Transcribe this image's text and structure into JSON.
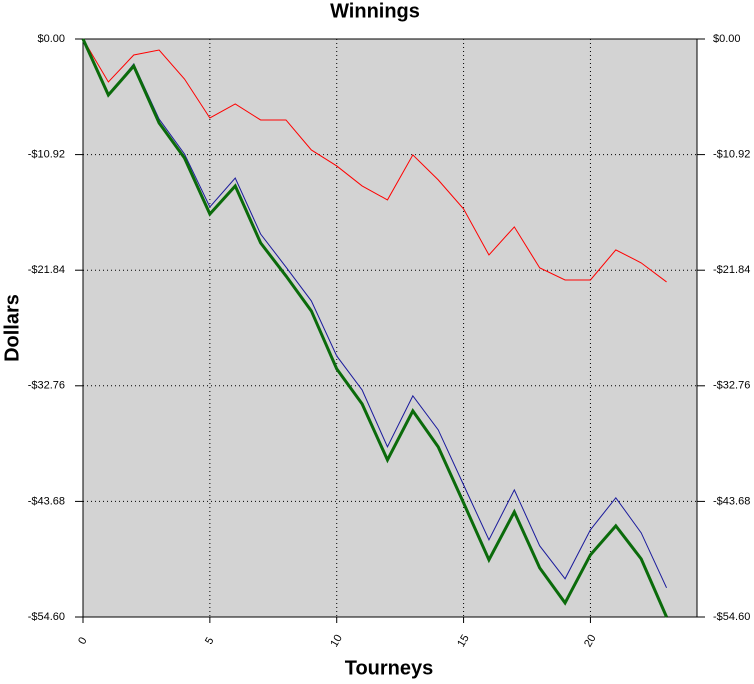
{
  "chart_data": {
    "type": "line",
    "title": "Winnings",
    "xlabel": "Tourneys",
    "ylabel": "Dollars",
    "x": [
      0,
      1,
      2,
      3,
      4,
      5,
      6,
      7,
      8,
      9,
      10,
      11,
      12,
      13,
      14,
      15,
      16,
      17,
      18,
      19,
      20,
      21,
      22,
      23
    ],
    "series": [
      {
        "color": "#ff0000",
        "width": 1,
        "values": [
          0,
          -4.06,
          -1.51,
          -1.04,
          -3.78,
          -7.46,
          -6.14,
          -7.65,
          -7.65,
          -10.48,
          -11.99,
          -13.88,
          -15.2,
          -10.95,
          -13.31,
          -16.05,
          -20.4,
          -17.75,
          -21.62,
          -22.76,
          -22.76,
          -19.92,
          -21.15,
          -22.95
        ]
      },
      {
        "color": "#1a1a9c",
        "width": 1,
        "values": [
          0,
          -5.29,
          -2.36,
          -7.56,
          -10.86,
          -15.87,
          -13.13,
          -18.42,
          -21.54,
          -24.74,
          -29.94,
          -33.15,
          -38.53,
          -33.71,
          -36.92,
          -42.12,
          -47.31,
          -42.59,
          -47.88,
          -50.99,
          -46.36,
          -43.34,
          -46.65,
          -51.84
        ]
      },
      {
        "color": "#0b6b0b",
        "width": 3,
        "values": [
          0,
          -5.29,
          -2.55,
          -7.93,
          -11.24,
          -16.53,
          -13.88,
          -19.26,
          -22.38,
          -25.69,
          -31.16,
          -34.47,
          -39.76,
          -35.13,
          -38.53,
          -43.82,
          -49.2,
          -44.67,
          -49.96,
          -53.27,
          -48.73,
          -45.99,
          -49.11,
          -54.6
        ]
      }
    ],
    "xlim": [
      0,
      24.2
    ],
    "xticks": [
      0,
      5,
      10,
      15,
      20
    ],
    "ylim": [
      -54.6,
      0
    ],
    "yticks": [
      {
        "value": -54.6,
        "label": "-$54.60"
      },
      {
        "value": -43.68,
        "label": "-$43.68"
      },
      {
        "value": -32.76,
        "label": "-$32.76"
      },
      {
        "value": -21.84,
        "label": "-$21.84"
      },
      {
        "value": -10.92,
        "label": "-$10.92"
      },
      {
        "value": 0,
        "label": "$0.00"
      }
    ],
    "grid": true,
    "background": "#d3d3d3"
  }
}
